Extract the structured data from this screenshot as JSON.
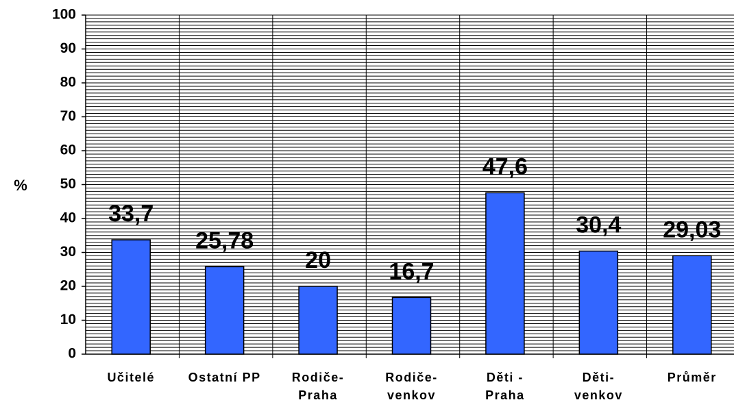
{
  "chart_data": {
    "type": "bar",
    "y_label": "%",
    "categories": [
      "Učitelé",
      "Ostatní PP",
      "Rodiče-Praha",
      "Rodiče-venkov",
      "Děti - Praha",
      "Děti-venkov",
      "Průměr"
    ],
    "values": [
      33.7,
      25.78,
      20,
      16.7,
      47.6,
      30.4,
      29.03
    ],
    "value_labels": [
      "33,7",
      "25,78",
      "20",
      "16,7",
      "47,6",
      "30,4",
      "29,03"
    ],
    "color": "#3366ff",
    "ylim": [
      0,
      100
    ],
    "yticks": [
      0,
      10,
      20,
      30,
      40,
      50,
      60,
      70,
      80,
      90,
      100
    ],
    "grid": true,
    "yminorticks": [
      0,
      1,
      2,
      3,
      4,
      5,
      6,
      7,
      8,
      9,
      10,
      11,
      12,
      13,
      14,
      15,
      16,
      17,
      18,
      19,
      20,
      21,
      22,
      23,
      24,
      25,
      26,
      27,
      28,
      29,
      30,
      31,
      32,
      33,
      34,
      35,
      36,
      37,
      38,
      39,
      40,
      41,
      42,
      43,
      44,
      45,
      46,
      47,
      48,
      49,
      50,
      51,
      52,
      53,
      54,
      55,
      56,
      57,
      58,
      59,
      60,
      61,
      62,
      63,
      64,
      65,
      66,
      67,
      68,
      69,
      70,
      71,
      72,
      73,
      74,
      75,
      76,
      77,
      78,
      79,
      80,
      81,
      82,
      83,
      84,
      85,
      86,
      87,
      88,
      89,
      90,
      91,
      92,
      93,
      94,
      95,
      96,
      97,
      98,
      99,
      100
    ]
  }
}
